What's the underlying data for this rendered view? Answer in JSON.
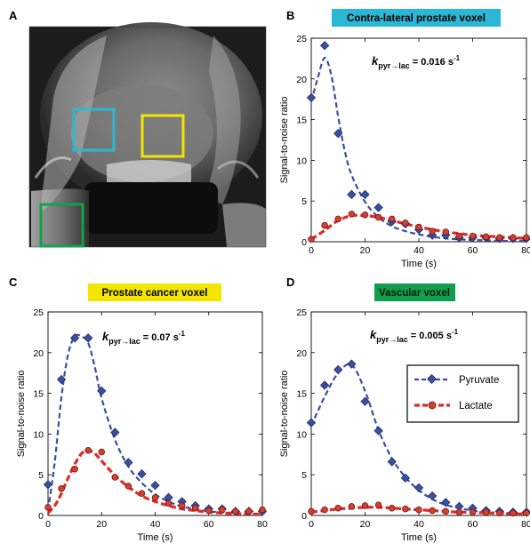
{
  "panels": [
    {
      "letter": "A"
    },
    {
      "letter": "B",
      "title": "Contra-lateral prostate voxel",
      "title_color": "#2cb8d4",
      "annotation": {
        "k_prefix": "k",
        "k_sub": "pyr→lac",
        "value": "= 0.016 s",
        "exp": "-1"
      }
    },
    {
      "letter": "C",
      "title": "Prostate cancer voxel",
      "title_color": "#f2e600",
      "annotation": {
        "k_prefix": "k",
        "k_sub": "pyr→lac",
        "value": "= 0.07 s",
        "exp": "-1"
      }
    },
    {
      "letter": "D",
      "title": "Vascular voxel",
      "title_color": "#0f9f4f",
      "annotation": {
        "k_prefix": "k",
        "k_sub": "pyr→lac",
        "value": "= 0.005 s",
        "exp": "-1"
      }
    }
  ],
  "image_panel": {
    "roi_boxes": [
      {
        "name": "cyan-roi-box",
        "color": "#2cb8d4"
      },
      {
        "name": "yellow-roi-box",
        "color": "#f2e600"
      },
      {
        "name": "green-roi-box",
        "color": "#13a14e"
      }
    ]
  },
  "legend": {
    "pyruvate": "Pyruvate",
    "lactate": "Lactate"
  },
  "colors": {
    "pyruvate": "#3a4fa0",
    "lactate": "#e02a2a",
    "lactate_marker": "#d0402f"
  },
  "chart_data": [
    {
      "type": "line",
      "panel": "B",
      "title": "Contra-lateral prostate voxel",
      "xlabel": "Time (s)",
      "ylabel": "Signal-to-noise ratio",
      "xlim": [
        0,
        80
      ],
      "ylim": [
        0,
        25
      ],
      "xticks": [
        0,
        20,
        40,
        60,
        80
      ],
      "yticks": [
        0,
        5,
        10,
        15,
        20,
        25
      ],
      "series": [
        {
          "name": "Pyruvate",
          "kind": "points",
          "x": [
            0,
            5,
            10,
            15,
            20,
            25,
            30,
            35,
            40,
            45,
            50,
            55,
            60,
            65,
            70,
            75,
            80
          ],
          "y": [
            17.7,
            24.1,
            13.3,
            5.8,
            5.8,
            4.2,
            2.5,
            2.2,
            1.5,
            0.8,
            0.8,
            0.5,
            0.5,
            0.5,
            0.4,
            0.4,
            0.4
          ]
        },
        {
          "name": "Pyruvate",
          "kind": "fit",
          "x": [
            0,
            2.5,
            5,
            7.5,
            10,
            12.5,
            15,
            20,
            25,
            30,
            35,
            40,
            45,
            50,
            55,
            60,
            65,
            70,
            75,
            80
          ],
          "y": [
            17.2,
            20.2,
            22.6,
            20.4,
            15.4,
            11.1,
            8.2,
            4.9,
            3.0,
            1.9,
            1.3,
            0.9,
            0.6,
            0.4,
            0.3,
            0.2,
            0.2,
            0.1,
            0.1,
            0.1
          ]
        },
        {
          "name": "Lactate",
          "kind": "points",
          "x": [
            0,
            5,
            10,
            15,
            20,
            25,
            30,
            35,
            40,
            45,
            50,
            55,
            60,
            65,
            70,
            75,
            80
          ],
          "y": [
            0.3,
            2.0,
            2.8,
            3.4,
            3.3,
            3.0,
            2.8,
            2.3,
            1.8,
            1.3,
            1.2,
            0.7,
            0.7,
            0.6,
            0.5,
            0.5,
            0.5
          ]
        },
        {
          "name": "Lactate",
          "kind": "fit",
          "x": [
            0,
            5,
            10,
            15,
            20,
            25,
            30,
            35,
            40,
            45,
            50,
            55,
            60,
            65,
            70,
            75,
            80
          ],
          "y": [
            0.3,
            1.4,
            2.6,
            3.2,
            3.2,
            3.0,
            2.6,
            2.2,
            1.8,
            1.5,
            1.2,
            1.0,
            0.8,
            0.7,
            0.6,
            0.5,
            0.4
          ]
        }
      ]
    },
    {
      "type": "line",
      "panel": "C",
      "title": "Prostate cancer voxel",
      "xlabel": "Time (s)",
      "ylabel": "Signal-to-noise ratio",
      "xlim": [
        0,
        80
      ],
      "ylim": [
        0,
        25
      ],
      "xticks": [
        0,
        20,
        40,
        60,
        80
      ],
      "yticks": [
        0,
        5,
        10,
        15,
        20,
        25
      ],
      "series": [
        {
          "name": "Pyruvate",
          "kind": "points",
          "x": [
            0,
            5,
            10,
            15,
            20,
            25,
            30,
            35,
            40,
            45,
            50,
            55,
            60,
            65,
            70,
            75,
            80
          ],
          "y": [
            3.8,
            16.7,
            21.8,
            21.8,
            15.3,
            10.2,
            6.5,
            5.1,
            3.7,
            2.2,
            1.7,
            1.2,
            0.8,
            0.8,
            0.5,
            0.5,
            0.5
          ]
        },
        {
          "name": "Pyruvate",
          "kind": "fit",
          "x": [
            0,
            2.5,
            5,
            7.5,
            10,
            12.5,
            15,
            17.5,
            20,
            25,
            30,
            35,
            40,
            45,
            50,
            55,
            60,
            65,
            70,
            75,
            80
          ],
          "y": [
            0.6,
            6.5,
            14.5,
            19.8,
            22.0,
            22.0,
            21.2,
            18.2,
            14.4,
            9.3,
            6.0,
            4.0,
            2.6,
            1.7,
            1.1,
            0.8,
            0.5,
            0.4,
            0.3,
            0.2,
            0.2
          ]
        },
        {
          "name": "Lactate",
          "kind": "points",
          "x": [
            0,
            5,
            10,
            15,
            20,
            25,
            30,
            35,
            40,
            45,
            50,
            55,
            60,
            65,
            70,
            75,
            80
          ],
          "y": [
            1.0,
            3.3,
            5.7,
            8.0,
            7.8,
            4.7,
            3.6,
            2.7,
            2.2,
            1.5,
            1.2,
            0.9,
            0.6,
            0.7,
            0.5,
            0.5,
            0.7
          ]
        },
        {
          "name": "Lactate",
          "kind": "fit",
          "x": [
            0,
            2.5,
            5,
            7.5,
            10,
            12.5,
            15,
            17.5,
            20,
            25,
            30,
            35,
            40,
            45,
            50,
            55,
            60,
            65,
            70,
            75,
            80
          ],
          "y": [
            0.3,
            1.2,
            2.7,
            4.6,
            6.3,
            7.6,
            8.0,
            7.6,
            6.7,
            4.9,
            3.5,
            2.4,
            1.7,
            1.2,
            0.8,
            0.6,
            0.4,
            0.3,
            0.2,
            0.2,
            0.1
          ]
        }
      ]
    },
    {
      "type": "line",
      "panel": "D",
      "title": "Vascular voxel",
      "xlabel": "Time (s)",
      "ylabel": "Signal-to-noise ratio",
      "xlim": [
        0,
        80
      ],
      "ylim": [
        0,
        25
      ],
      "xticks": [
        0,
        20,
        40,
        60,
        80
      ],
      "yticks": [
        0,
        5,
        10,
        15,
        20,
        25
      ],
      "legend": "upper right",
      "series": [
        {
          "name": "Pyruvate",
          "kind": "points",
          "x": [
            0,
            5,
            10,
            15,
            20,
            25,
            30,
            35,
            40,
            45,
            50,
            55,
            60,
            65,
            70,
            75,
            80
          ],
          "y": [
            11.4,
            16.0,
            17.9,
            18.6,
            14.0,
            10.4,
            6.6,
            4.6,
            3.4,
            2.4,
            1.6,
            1.1,
            0.9,
            0.6,
            0.5,
            0.4,
            0.4
          ]
        },
        {
          "name": "Pyruvate",
          "kind": "fit",
          "x": [
            0,
            5,
            10,
            15,
            20,
            25,
            30,
            35,
            40,
            45,
            50,
            55,
            60,
            65,
            70,
            75,
            80
          ],
          "y": [
            11.0,
            14.6,
            17.5,
            18.5,
            15.3,
            10.5,
            7.0,
            4.7,
            3.1,
            2.0,
            1.3,
            0.9,
            0.6,
            0.4,
            0.3,
            0.2,
            0.1
          ]
        },
        {
          "name": "Lactate",
          "kind": "points",
          "x": [
            0,
            5,
            10,
            15,
            20,
            25,
            30,
            35,
            40,
            45,
            50,
            55,
            60,
            65,
            70,
            75,
            80
          ],
          "y": [
            0.5,
            0.7,
            0.9,
            1.1,
            1.2,
            1.3,
            0.9,
            0.8,
            0.7,
            0.6,
            0.5,
            0.4,
            0.4,
            0.4,
            0.3,
            0.3,
            0.3
          ]
        },
        {
          "name": "Lactate",
          "kind": "fit",
          "x": [
            0,
            5,
            10,
            15,
            20,
            25,
            30,
            35,
            40,
            45,
            50,
            55,
            60,
            65,
            70,
            75,
            80
          ],
          "y": [
            0.4,
            0.6,
            0.8,
            0.9,
            1.0,
            1.0,
            0.9,
            0.8,
            0.7,
            0.6,
            0.5,
            0.4,
            0.4,
            0.3,
            0.3,
            0.2,
            0.2
          ]
        }
      ]
    }
  ]
}
